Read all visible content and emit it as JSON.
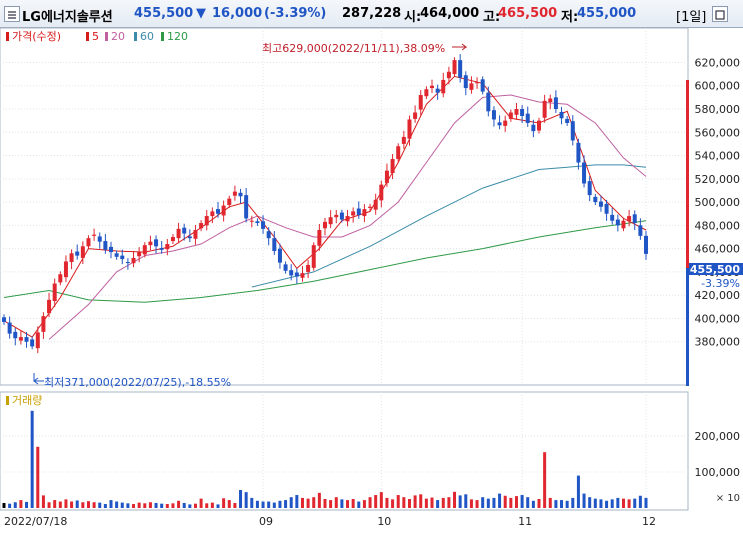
{
  "header": {
    "name": "LG에너지솔루션",
    "price": "455,500",
    "change_arrow": "▼",
    "change": "16,000",
    "change_pct": "(-3.39%)",
    "volume": "287,228",
    "open_label": "시:",
    "open": "464,000",
    "high_label": "고:",
    "high": "465,500",
    "low_label": "저:",
    "low": "455,000",
    "period": "[1일]"
  },
  "legend": {
    "price_label": "가격(수정)",
    "ma": [
      "5",
      "20",
      "60",
      "120"
    ],
    "ma_colors": [
      "#d81b1b",
      "#c060a0",
      "#3c8ca8",
      "#2e9a46"
    ],
    "volume_label": "거래량"
  },
  "annotations": {
    "high": "최고629,000(2022/11/11),38.09%",
    "low": "최저371,000(2022/07/25),-18.55%"
  },
  "current": {
    "price": "455,500",
    "pct": "-3.39%"
  },
  "x_labels": [
    "2022/07/18",
    "09",
    "10",
    "11",
    "12"
  ],
  "volume_unit": "× 10",
  "chart_data": {
    "type": "candlestick",
    "price_axis": {
      "ticks": [
        380000,
        400000,
        420000,
        440000,
        460000,
        480000,
        500000,
        520000,
        540000,
        560000,
        580000,
        600000,
        620000
      ],
      "range": [
        354000,
        635000
      ]
    },
    "volume_axis": {
      "ticks": [
        100000,
        200000
      ],
      "range": [
        0,
        300000
      ]
    },
    "colors": {
      "up": "#e0262e",
      "down": "#1f55c4",
      "flat": "#000000",
      "ma5": "#d81b1b",
      "ma20": "#c060a0",
      "ma60": "#3c8ca8",
      "ma120": "#2e9a46"
    },
    "close": [
      397000,
      387000,
      383000,
      384000,
      380000,
      376000,
      388000,
      402000,
      416000,
      430000,
      438000,
      449000,
      456000,
      454000,
      462000,
      469000,
      472000,
      466000,
      459000,
      457000,
      453000,
      451000,
      448000,
      452000,
      457000,
      463000,
      466000,
      462000,
      459000,
      464000,
      470000,
      477000,
      473000,
      469000,
      476000,
      482000,
      488000,
      492000,
      490000,
      497000,
      503000,
      509000,
      505000,
      486000,
      484000,
      482000,
      477000,
      469000,
      458000,
      448000,
      441000,
      437000,
      436000,
      439000,
      446000,
      463000,
      476000,
      483000,
      487000,
      489000,
      485000,
      488000,
      492000,
      489000,
      494000,
      496000,
      502000,
      515000,
      527000,
      537000,
      548000,
      556000,
      571000,
      577000,
      592000,
      597000,
      600000,
      594000,
      605000,
      612000,
      622000,
      607000,
      598000,
      602000,
      603000,
      595000,
      578000,
      571000,
      566000,
      570000,
      577000,
      580000,
      574000,
      568000,
      561000,
      570000,
      587000,
      589000,
      580000,
      572000,
      568000,
      553000,
      534000,
      516000,
      506000,
      500000,
      496000,
      490000,
      484000,
      480000,
      484000,
      488000,
      482000,
      471000,
      455500
    ],
    "bars": 115,
    "ma": {
      "ma5": [
        [
          0,
          398000
        ],
        [
          5,
          384000
        ],
        [
          10,
          418000
        ],
        [
          15,
          460000
        ],
        [
          20,
          458000
        ],
        [
          25,
          457000
        ],
        [
          30,
          462000
        ],
        [
          35,
          478000
        ],
        [
          40,
          496000
        ],
        [
          43,
          500000
        ],
        [
          48,
          470000
        ],
        [
          52,
          443000
        ],
        [
          56,
          460000
        ],
        [
          60,
          484000
        ],
        [
          65,
          492000
        ],
        [
          70,
          534000
        ],
        [
          75,
          584000
        ],
        [
          80,
          608000
        ],
        [
          85,
          602000
        ],
        [
          90,
          572000
        ],
        [
          95,
          568000
        ],
        [
          100,
          578000
        ],
        [
          105,
          510000
        ],
        [
          110,
          486000
        ],
        [
          114,
          476000
        ]
      ],
      "ma20": [
        [
          8,
          382000
        ],
        [
          15,
          412000
        ],
        [
          20,
          440000
        ],
        [
          25,
          454000
        ],
        [
          30,
          458000
        ],
        [
          35,
          464000
        ],
        [
          40,
          478000
        ],
        [
          45,
          488000
        ],
        [
          50,
          478000
        ],
        [
          55,
          470000
        ],
        [
          60,
          470000
        ],
        [
          65,
          480000
        ],
        [
          70,
          500000
        ],
        [
          75,
          534000
        ],
        [
          80,
          568000
        ],
        [
          85,
          590000
        ],
        [
          90,
          592000
        ],
        [
          95,
          586000
        ],
        [
          100,
          584000
        ],
        [
          105,
          568000
        ],
        [
          110,
          538000
        ],
        [
          114,
          522000
        ]
      ],
      "ma60": [
        [
          44,
          427000
        ],
        [
          55,
          440000
        ],
        [
          65,
          462000
        ],
        [
          75,
          488000
        ],
        [
          85,
          512000
        ],
        [
          95,
          528000
        ],
        [
          100,
          530000
        ],
        [
          105,
          532000
        ],
        [
          110,
          532000
        ],
        [
          114,
          530000
        ]
      ],
      "ma120": [
        [
          0,
          418000
        ],
        [
          8,
          424000
        ],
        [
          15,
          416000
        ],
        [
          25,
          414000
        ],
        [
          35,
          418000
        ],
        [
          45,
          424000
        ],
        [
          55,
          432000
        ],
        [
          65,
          442000
        ],
        [
          75,
          452000
        ],
        [
          85,
          460000
        ],
        [
          95,
          470000
        ],
        [
          105,
          478000
        ],
        [
          114,
          484000
        ]
      ]
    },
    "volume": [
      14000,
      12000,
      16000,
      22000,
      17000,
      270000,
      170000,
      35000,
      16000,
      22000,
      18000,
      24000,
      18000,
      21000,
      16000,
      19000,
      16000,
      15000,
      11000,
      22000,
      18000,
      15000,
      13000,
      11000,
      15000,
      13000,
      16000,
      14000,
      12000,
      11000,
      13000,
      20000,
      14000,
      10000,
      12000,
      26000,
      13000,
      15000,
      10000,
      27000,
      22000,
      14000,
      50000,
      44000,
      28000,
      20000,
      18000,
      18000,
      15000,
      20000,
      22000,
      30000,
      36000,
      28000,
      26000,
      30000,
      42000,
      25000,
      22000,
      30000,
      24000,
      22000,
      25000,
      18000,
      22000,
      30000,
      36000,
      44000,
      28000,
      24000,
      36000,
      30000,
      25000,
      35000,
      38000,
      26000,
      29000,
      22000,
      28000,
      30000,
      45000,
      35000,
      38000,
      24000,
      22000,
      30000,
      26000,
      28000,
      40000,
      34000,
      28000,
      33000,
      36000,
      30000,
      20000,
      25000,
      155000,
      28000,
      22000,
      22000,
      20000,
      28000,
      90000,
      40000,
      30000,
      26000,
      24000,
      20000,
      24000,
      28000,
      26000,
      24000,
      26000,
      34000,
      28000
    ]
  }
}
